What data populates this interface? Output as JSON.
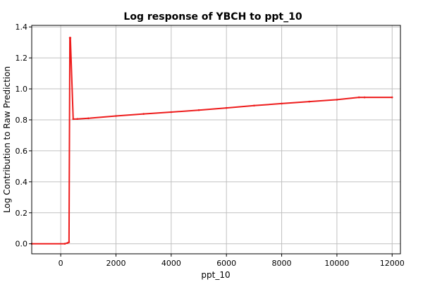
{
  "chart_data": {
    "type": "line",
    "title": "Log response of YBCH to ppt_10",
    "xlabel": "ppt_10",
    "ylabel": "Log Contribution to Raw Prediction",
    "xlim": [
      -1050,
      12300
    ],
    "ylim": [
      -0.065,
      1.41
    ],
    "xticks": [
      0,
      2000,
      4000,
      6000,
      8000,
      10000,
      12000
    ],
    "xtick_labels": [
      "0",
      "2000",
      "4000",
      "6000",
      "8000",
      "10000",
      "12000"
    ],
    "yticks": [
      0.0,
      0.2,
      0.4,
      0.6,
      0.8,
      1.0,
      1.2,
      1.4
    ],
    "ytick_labels": [
      "0.0",
      "0.2",
      "0.4",
      "0.6",
      "0.8",
      "1.0",
      "1.2",
      "1.4"
    ],
    "grid": true,
    "series": [
      {
        "color": "#ee1c1c",
        "x": [
          -1050,
          150,
          250,
          300,
          330,
          350,
          450,
          600,
          1000,
          2000,
          3000,
          4000,
          5000,
          6000,
          7000,
          8000,
          9000,
          10000,
          10800,
          11000,
          12000
        ],
        "y": [
          0.0,
          0.0,
          0.005,
          0.01,
          1.33,
          1.33,
          0.805,
          0.806,
          0.81,
          0.825,
          0.838,
          0.85,
          0.863,
          0.877,
          0.892,
          0.905,
          0.918,
          0.93,
          0.945,
          0.945,
          0.945
        ]
      }
    ]
  }
}
